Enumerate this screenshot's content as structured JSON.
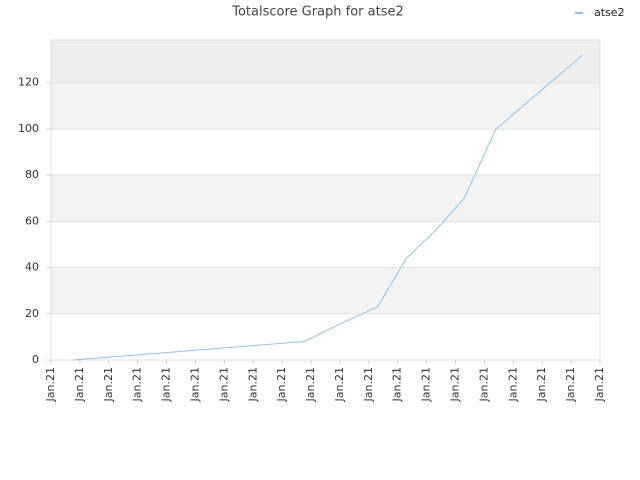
{
  "chart_data": {
    "type": "line",
    "title": "Totalscore Graph for atse2",
    "x": [
      0.76,
      1.76,
      2.76,
      3.76,
      4.76,
      5.76,
      6.76,
      7.76,
      8.76,
      9.9,
      11.3,
      12.3,
      13.3,
      14.3,
      15.4,
      18.4
    ],
    "series": [
      {
        "name": "atse2",
        "color": "#8ec2f0",
        "values": [
          0,
          1,
          2,
          3,
          4,
          5,
          6,
          7,
          8,
          15,
          23,
          44,
          56,
          70,
          100,
          132
        ]
      }
    ],
    "xlim": [
      0,
      19
    ],
    "xticks": [
      {
        "value": 0,
        "label": "Jan.21"
      },
      {
        "value": 1,
        "label": "Jan.21"
      },
      {
        "value": 2,
        "label": "Jan.21"
      },
      {
        "value": 3,
        "label": "Jan.21"
      },
      {
        "value": 4,
        "label": "Jan.21"
      },
      {
        "value": 5,
        "label": "Jan.21"
      },
      {
        "value": 6,
        "label": "Jan.21"
      },
      {
        "value": 7,
        "label": "Jan.21"
      },
      {
        "value": 8,
        "label": "Jan.21"
      },
      {
        "value": 9,
        "label": "Jan.21"
      },
      {
        "value": 10,
        "label": "Jan.21"
      },
      {
        "value": 11,
        "label": "Jan.21"
      },
      {
        "value": 12,
        "label": "Jan.21"
      },
      {
        "value": 13,
        "label": "Jan.21"
      },
      {
        "value": 14,
        "label": "Jan.21"
      },
      {
        "value": 15,
        "label": "Jan.21"
      },
      {
        "value": 16,
        "label": "Jan.21"
      },
      {
        "value": 17,
        "label": "Jan.21"
      },
      {
        "value": 18,
        "label": "Jan.21"
      },
      {
        "value": 19,
        "label": "Jan.21"
      }
    ],
    "ylim": [
      0,
      138.5
    ],
    "yticks": [
      0,
      20,
      40,
      60,
      80,
      100,
      120
    ],
    "grid": true,
    "legend": "top-right"
  }
}
